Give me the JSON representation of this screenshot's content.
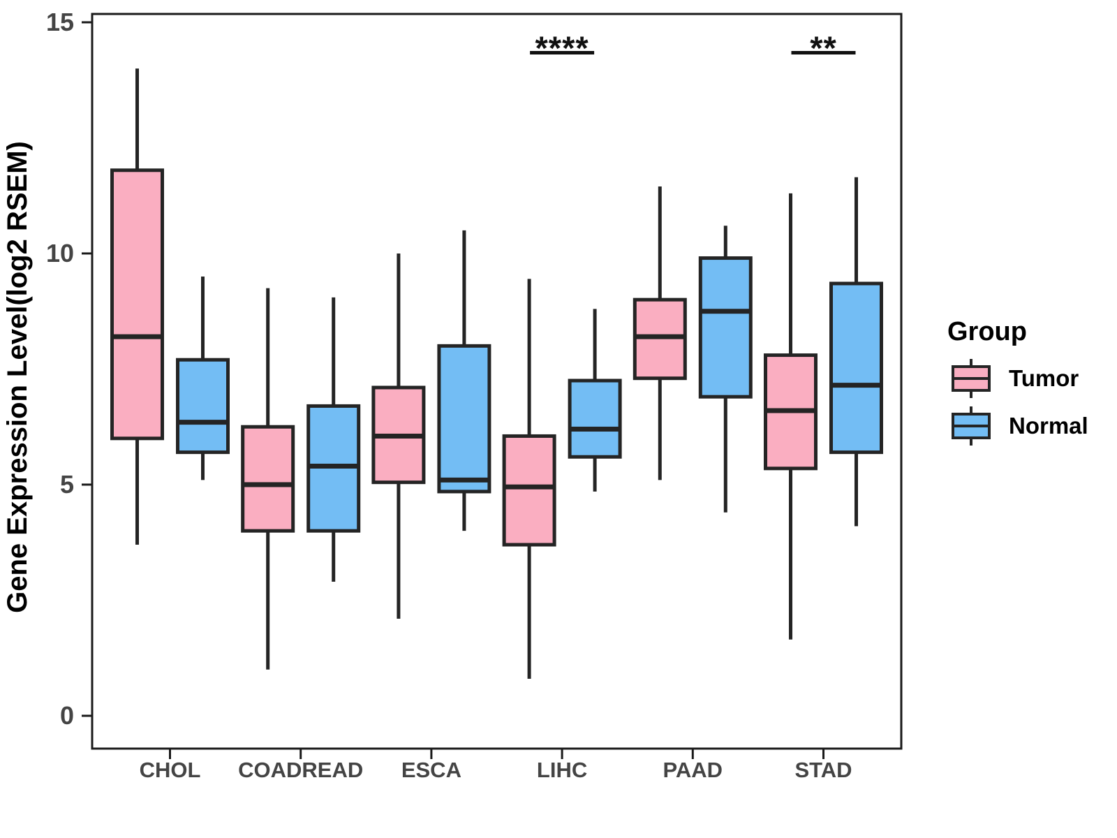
{
  "figure": {
    "background": "#ffffff"
  },
  "chart_data": {
    "type": "boxplot",
    "title": "",
    "xlabel": "",
    "ylabel": "Gene Expression Level(log2 RSEM)",
    "ylim": [
      -0.71,
      15.18
    ],
    "yticks": [
      {
        "value": 0,
        "label": "0"
      },
      {
        "value": 5,
        "label": "5"
      },
      {
        "value": 10,
        "label": "10"
      },
      {
        "value": 15,
        "label": "15"
      }
    ],
    "grid": "off",
    "categories": [
      "CHOL",
      "COADREAD",
      "ESCA",
      "LIHC",
      "PAAD",
      "STAD"
    ],
    "series": [
      {
        "name": "Tumor",
        "fill": "#FAAEC1",
        "boxes": [
          {
            "category": "CHOL",
            "min": 3.7,
            "q1": 6.0,
            "median": 8.2,
            "q3": 11.8,
            "max": 14.0
          },
          {
            "category": "COADREAD",
            "min": 1.0,
            "q1": 4.0,
            "median": 5.0,
            "q3": 6.25,
            "max": 9.25
          },
          {
            "category": "ESCA",
            "min": 2.1,
            "q1": 5.05,
            "median": 6.05,
            "q3": 7.1,
            "max": 10.0
          },
          {
            "category": "LIHC",
            "min": 0.8,
            "q1": 3.7,
            "median": 4.95,
            "q3": 6.05,
            "max": 9.45
          },
          {
            "category": "PAAD",
            "min": 5.1,
            "q1": 7.3,
            "median": 8.2,
            "q3": 9.0,
            "max": 11.45
          },
          {
            "category": "STAD",
            "min": 1.65,
            "q1": 5.35,
            "median": 6.6,
            "q3": 7.8,
            "max": 11.3
          }
        ]
      },
      {
        "name": "Normal",
        "fill": "#73BDF4",
        "boxes": [
          {
            "category": "CHOL",
            "min": 5.1,
            "q1": 5.7,
            "median": 6.35,
            "q3": 7.7,
            "max": 9.5
          },
          {
            "category": "COADREAD",
            "min": 2.9,
            "q1": 4.0,
            "median": 5.4,
            "q3": 6.7,
            "max": 9.05
          },
          {
            "category": "ESCA",
            "min": 4.0,
            "q1": 4.85,
            "median": 5.1,
            "q3": 8.0,
            "max": 10.5
          },
          {
            "category": "LIHC",
            "min": 4.85,
            "q1": 5.6,
            "median": 6.2,
            "q3": 7.25,
            "max": 8.8
          },
          {
            "category": "PAAD",
            "min": 4.4,
            "q1": 6.9,
            "median": 8.75,
            "q3": 9.9,
            "max": 10.6
          },
          {
            "category": "STAD",
            "min": 4.1,
            "q1": 5.7,
            "median": 7.15,
            "q3": 9.35,
            "max": 11.65
          }
        ]
      }
    ],
    "significance": [
      {
        "category": "LIHC",
        "label": "****"
      },
      {
        "category": "STAD",
        "label": "**"
      }
    ],
    "legend": {
      "title": "Group",
      "position": "right",
      "entries": [
        "Tumor",
        "Normal"
      ]
    },
    "colors": {
      "box_stroke": "#242424",
      "axis": "#1a1a1a",
      "tick_text": "#444444",
      "label_text": "#000000",
      "sig_text": "#111111"
    }
  }
}
